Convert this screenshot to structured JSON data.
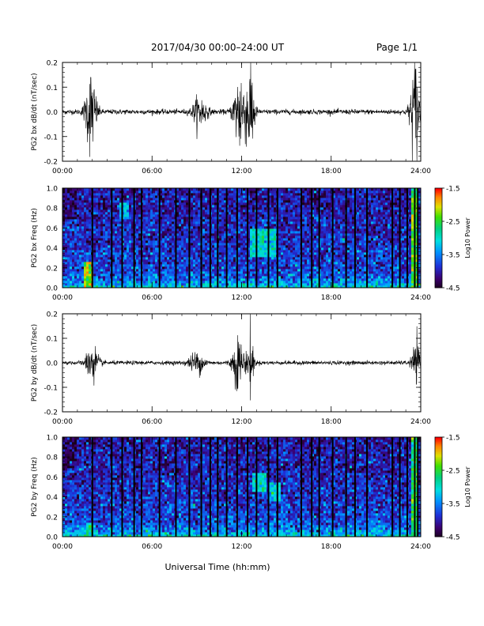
{
  "header": {
    "date_range": "2017/04/30  00:00–24:00 UT",
    "page": "Page 1/1"
  },
  "footer": {
    "xlabel": "Universal Time (hh:mm)"
  },
  "chart_data": [
    {
      "type": "line",
      "ylabel": "PG2 bx dB/dt (nT/sec)",
      "xlabel": "Universal Time (hh:mm)",
      "x_ticks": [
        "00:00",
        "06:00",
        "12:00",
        "18:00",
        "24:00"
      ],
      "y_ticks": [
        "0.2",
        "0.1",
        "0.0",
        "-0.1",
        "-0.2"
      ],
      "ylim": [
        -0.2,
        0.2
      ],
      "xlim_hours": [
        0,
        24
      ],
      "activity_bursts": [
        {
          "center_h": 1.9,
          "width_h": 0.7,
          "amplitude": 0.16
        },
        {
          "center_h": 9.2,
          "width_h": 0.9,
          "amplitude": 0.06
        },
        {
          "center_h": 11.9,
          "width_h": 0.8,
          "amplitude": 0.17
        },
        {
          "center_h": 12.6,
          "width_h": 0.5,
          "amplitude": 0.2
        },
        {
          "center_h": 23.6,
          "width_h": 0.6,
          "amplitude": 0.2
        }
      ],
      "baseline_noise": 0.005
    },
    {
      "type": "heatmap",
      "ylabel": "PG2 bx Freq (Hz)",
      "colorbar_label": "Log10 Power",
      "x_ticks": [
        "00:00",
        "06:00",
        "12:00",
        "18:00",
        "24:00"
      ],
      "y_ticks": [
        "1.0",
        "0.8",
        "0.6",
        "0.4",
        "0.2",
        "0.0"
      ],
      "ylim": [
        0,
        1.0
      ],
      "colorbar_ticks": [
        "-1.5",
        "-2.5",
        "-3.5",
        "-4.5"
      ],
      "colorbar_range": [
        -4.5,
        -1.5
      ],
      "gap_times_h": [
        2.0,
        3.3,
        4.0,
        4.8,
        5.3,
        6.5,
        7.6,
        8.5,
        9.3,
        9.9,
        10.4,
        11.0,
        11.7,
        12.4,
        13.0,
        13.8,
        14.4,
        16.0,
        16.7,
        17.2,
        18.1,
        19.0,
        19.6,
        20.4,
        22.1,
        22.6,
        23.1,
        23.6,
        23.8
      ],
      "enhanced_regions": [
        {
          "t_start_h": 12.5,
          "t_end_h": 14.3,
          "f_low_hz": 0.3,
          "f_high_hz": 0.6,
          "log_power": -3.0
        },
        {
          "t_start_h": 3.8,
          "t_end_h": 4.5,
          "f_low_hz": 0.7,
          "f_high_hz": 0.85,
          "log_power": -3.2
        },
        {
          "t_start_h": 1.5,
          "t_end_h": 2.1,
          "f_low_hz": 0.0,
          "f_high_hz": 0.25,
          "log_power": -2.2
        },
        {
          "t_start_h": 23.3,
          "t_end_h": 23.9,
          "f_low_hz": 0.0,
          "f_high_hz": 1.0,
          "log_power": -2.4
        }
      ]
    },
    {
      "type": "line",
      "ylabel": "PG2 by dB/dt (nT/sec)",
      "x_ticks": [
        "00:00",
        "06:00",
        "12:00",
        "18:00",
        "24:00"
      ],
      "y_ticks": [
        "0.2",
        "0.1",
        "0.0",
        "-0.1",
        "-0.2"
      ],
      "ylim": [
        -0.2,
        0.2
      ],
      "xlim_hours": [
        0,
        24
      ],
      "activity_bursts": [
        {
          "center_h": 2.0,
          "width_h": 0.8,
          "amplitude": 0.07
        },
        {
          "center_h": 9.0,
          "width_h": 1.0,
          "amplitude": 0.04
        },
        {
          "center_h": 11.8,
          "width_h": 0.8,
          "amplitude": 0.1
        },
        {
          "center_h": 12.6,
          "width_h": 0.4,
          "amplitude": 0.12
        },
        {
          "center_h": 23.7,
          "width_h": 0.6,
          "amplitude": 0.07
        }
      ],
      "baseline_noise": 0.004
    },
    {
      "type": "heatmap",
      "ylabel": "PG2 by Freq (Hz)",
      "colorbar_label": "Log10 Power",
      "x_ticks": [
        "00:00",
        "06:00",
        "12:00",
        "18:00",
        "24:00"
      ],
      "y_ticks": [
        "1.0",
        "0.8",
        "0.6",
        "0.4",
        "0.2",
        "0.0"
      ],
      "ylim": [
        0,
        1.0
      ],
      "colorbar_ticks": [
        "-1.5",
        "-2.5",
        "-3.5",
        "-4.5"
      ],
      "colorbar_range": [
        -4.5,
        -1.5
      ],
      "gap_times_h": [
        2.0,
        3.3,
        4.0,
        4.8,
        5.3,
        6.5,
        7.6,
        8.5,
        9.3,
        9.9,
        10.4,
        11.0,
        11.7,
        12.4,
        13.0,
        13.8,
        14.4,
        16.0,
        16.7,
        17.2,
        18.1,
        19.0,
        19.6,
        20.4,
        22.1,
        22.6,
        23.1,
        23.6,
        23.8
      ],
      "enhanced_regions": [
        {
          "t_start_h": 12.7,
          "t_end_h": 13.6,
          "f_low_hz": 0.45,
          "f_high_hz": 0.65,
          "log_power": -3.0
        },
        {
          "t_start_h": 13.9,
          "t_end_h": 14.7,
          "f_low_hz": 0.35,
          "f_high_hz": 0.55,
          "log_power": -3.1
        },
        {
          "t_start_h": 1.6,
          "t_end_h": 2.1,
          "f_low_hz": 0.0,
          "f_high_hz": 0.15,
          "log_power": -2.8
        },
        {
          "t_start_h": 23.3,
          "t_end_h": 23.9,
          "f_low_hz": 0.0,
          "f_high_hz": 1.0,
          "log_power": -2.6
        }
      ]
    }
  ]
}
